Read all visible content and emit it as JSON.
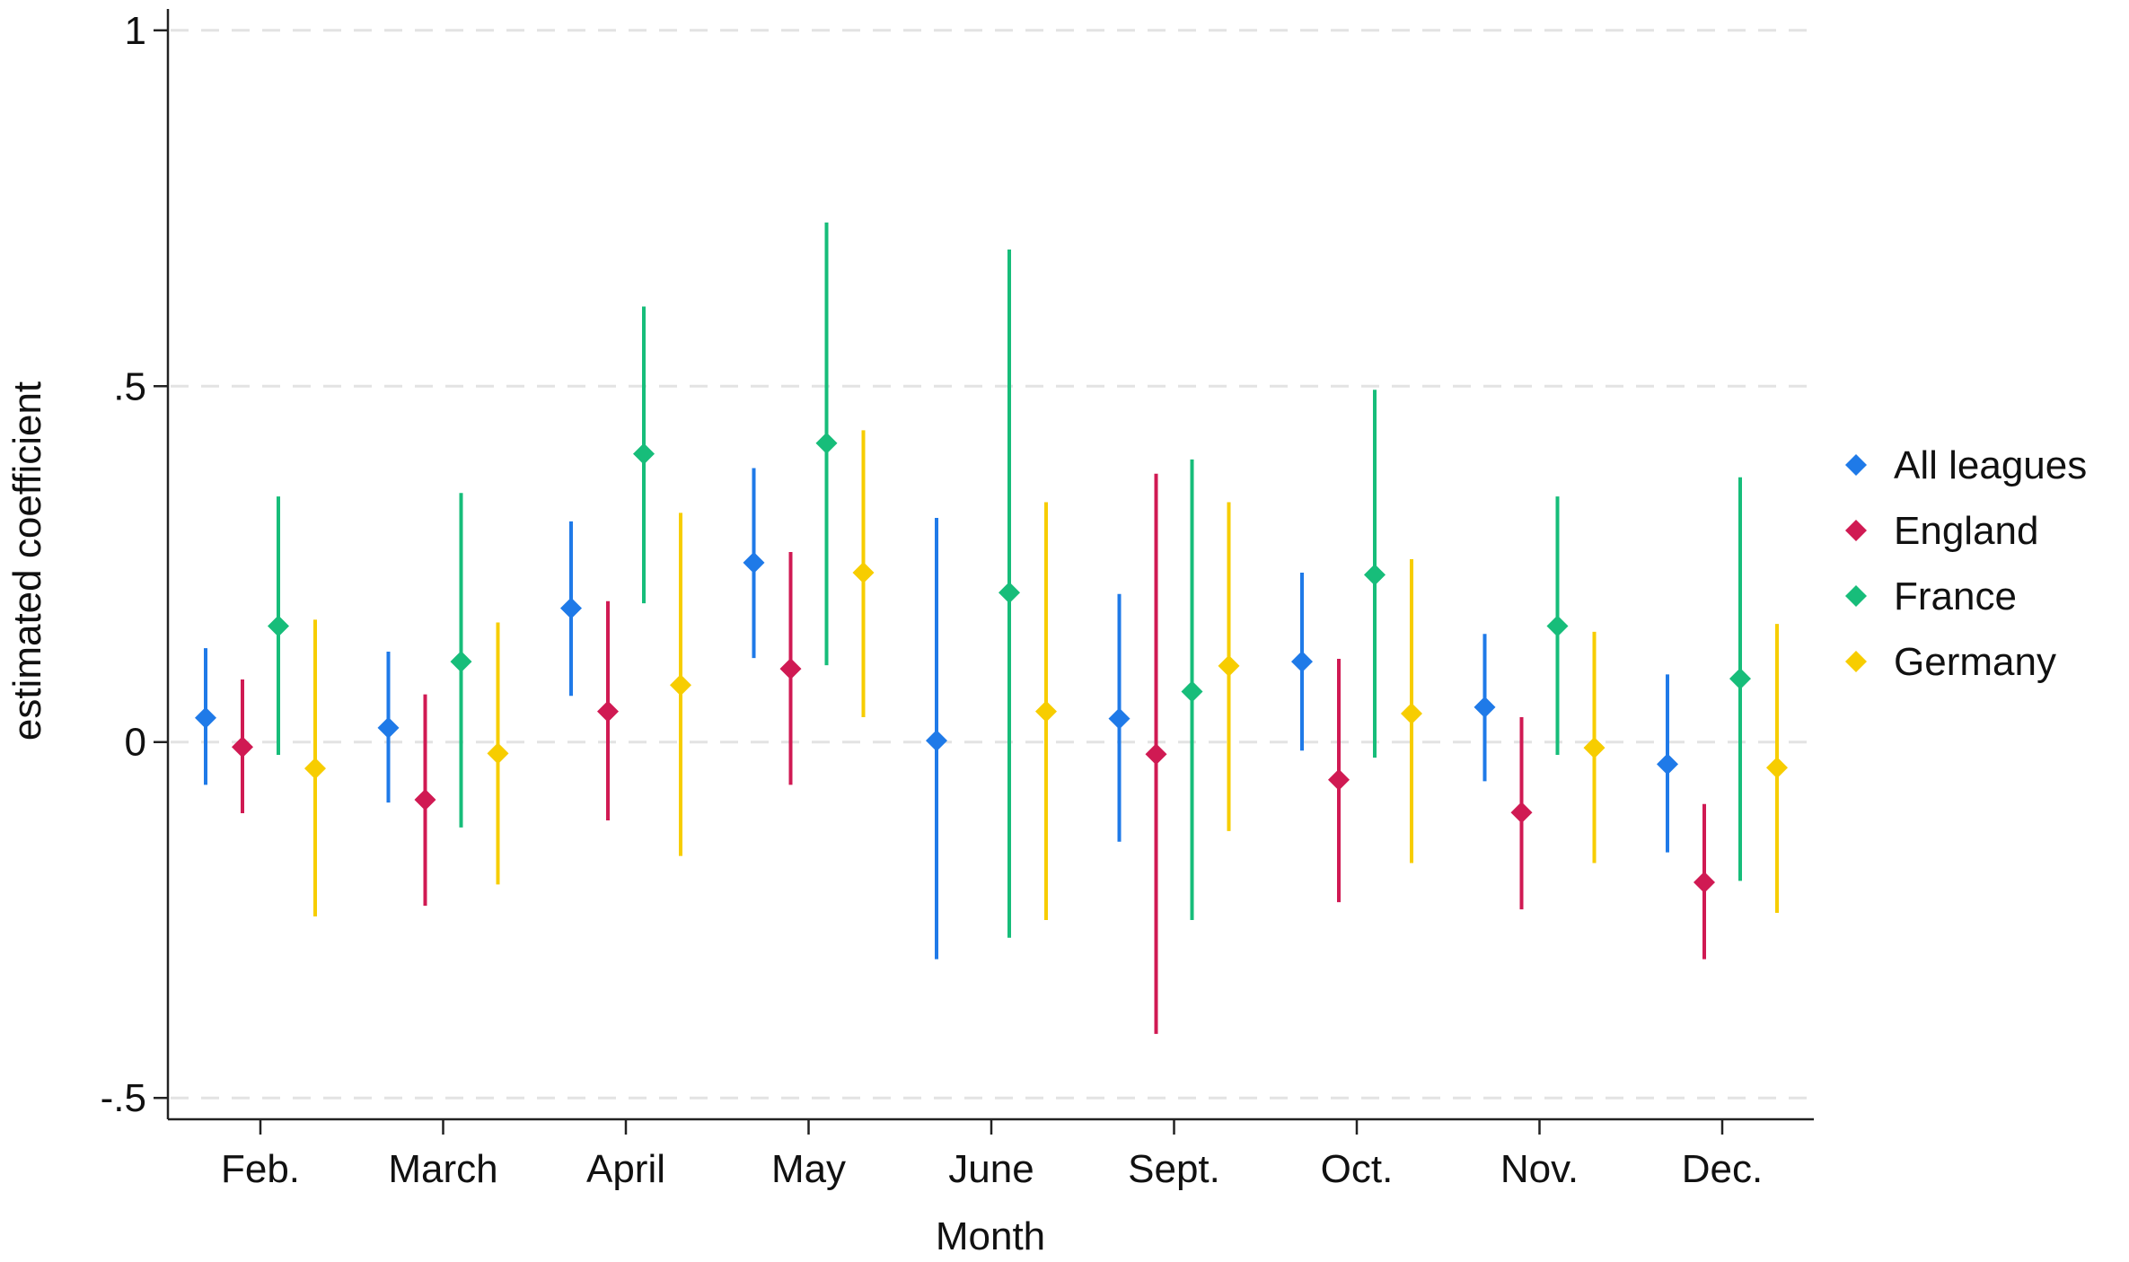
{
  "chart_data": {
    "type": "scatter",
    "xlabel": "Month",
    "ylabel": "estimated coefficient",
    "categories": [
      "Feb.",
      "March",
      "April",
      "May",
      "June",
      "Sept.",
      "Oct.",
      "Nov.",
      "Dec."
    ],
    "ylim": [
      -0.53,
      1.03
    ],
    "yticks": [
      {
        "value": -0.5,
        "label": "-.5"
      },
      {
        "value": 0,
        "label": "0"
      },
      {
        "value": 0.5,
        "label": ".5"
      },
      {
        "value": 1,
        "label": "1"
      }
    ],
    "grid": "horizontal dashed",
    "legend_position": "right",
    "series": [
      {
        "name": "All leagues",
        "color": "#1f7ae8",
        "values": [
          0.034,
          0.02,
          0.188,
          0.252,
          0.002,
          0.033,
          0.113,
          0.049,
          -0.031
        ],
        "ci_low": [
          -0.06,
          -0.085,
          0.065,
          0.118,
          -0.305,
          -0.14,
          -0.012,
          -0.055,
          -0.155
        ],
        "ci_high": [
          0.132,
          0.127,
          0.31,
          0.385,
          0.315,
          0.208,
          0.238,
          0.152,
          0.095
        ]
      },
      {
        "name": "England",
        "color": "#d01a53",
        "values": [
          -0.007,
          -0.081,
          0.043,
          0.103,
          null,
          -0.017,
          -0.053,
          -0.099,
          -0.197
        ],
        "ci_low": [
          -0.1,
          -0.23,
          -0.11,
          -0.06,
          null,
          -0.41,
          -0.225,
          -0.235,
          -0.305
        ],
        "ci_high": [
          0.088,
          0.067,
          0.198,
          0.267,
          null,
          0.377,
          0.117,
          0.035,
          -0.087
        ]
      },
      {
        "name": "France",
        "color": "#17bd7a",
        "values": [
          0.163,
          0.113,
          0.405,
          0.42,
          0.21,
          0.071,
          0.235,
          0.163,
          0.089
        ],
        "ci_low": [
          -0.018,
          -0.12,
          0.195,
          0.108,
          -0.275,
          -0.25,
          -0.022,
          -0.018,
          -0.195
        ],
        "ci_high": [
          0.345,
          0.35,
          0.612,
          0.73,
          0.692,
          0.397,
          0.495,
          0.345,
          0.372
        ]
      },
      {
        "name": "Germany",
        "color": "#f7cd00",
        "values": [
          -0.037,
          -0.016,
          0.08,
          0.238,
          0.043,
          0.107,
          0.04,
          -0.008,
          -0.036
        ],
        "ci_low": [
          -0.245,
          -0.2,
          -0.16,
          0.035,
          -0.25,
          -0.125,
          -0.17,
          -0.17,
          -0.24
        ],
        "ci_high": [
          0.172,
          0.168,
          0.322,
          0.438,
          0.337,
          0.337,
          0.257,
          0.155,
          0.166
        ]
      }
    ]
  }
}
